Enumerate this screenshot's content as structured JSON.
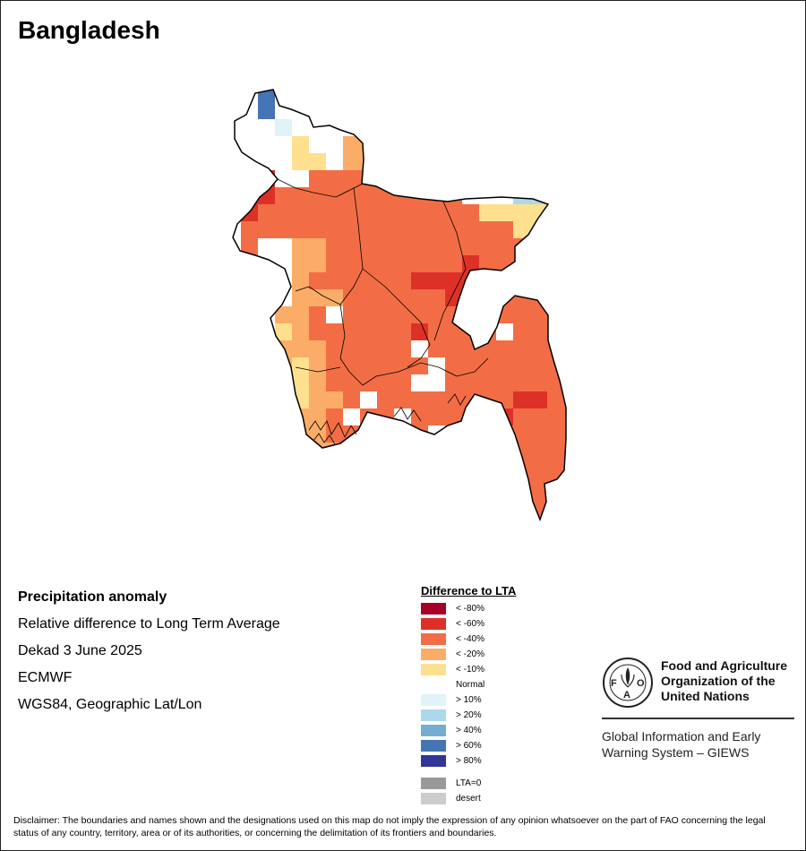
{
  "title": "Bangladesh",
  "info": {
    "heading": "Precipitation anomaly",
    "line1": "Relative difference to Long Term Average",
    "line2": "Dekad 3 June 2025",
    "line3": "ECMWF",
    "line4": "WGS84, Geographic Lat/Lon"
  },
  "legend": {
    "title": "Difference to LTA",
    "items": [
      {
        "label": "< -80%",
        "color": "#a50026"
      },
      {
        "label": "< -60%",
        "color": "#dd3127"
      },
      {
        "label": "< -40%",
        "color": "#f26d45"
      },
      {
        "label": "< -20%",
        "color": "#fbad68"
      },
      {
        "label": "< -10%",
        "color": "#fee08f"
      },
      {
        "label": "Normal",
        "color": "#ffffff"
      },
      {
        "label": "> 10%",
        "color": "#e0f3f8"
      },
      {
        "label": "> 20%",
        "color": "#abd9e9"
      },
      {
        "label": "> 40%",
        "color": "#74add1"
      },
      {
        "label": "> 60%",
        "color": "#4575b4"
      },
      {
        "label": "> 80%",
        "color": "#313695"
      }
    ],
    "extra": [
      {
        "label": "LTA=0",
        "color": "#999999"
      },
      {
        "label": "desert",
        "color": "#cccccc"
      }
    ]
  },
  "fao": {
    "name_line1": "Food and Agriculture",
    "name_line2": "Organization of the",
    "name_line3": "United Nations",
    "sub_line1": "Global Information and Early",
    "sub_line2": "Warning System – GIEWS",
    "logo_letters": "FAO",
    "logo_motto": "FIAT PANIS"
  },
  "disclaimer": "Disclaimer: The boundaries and names shown and the designations used on this map do not imply the expression of any opinion whatsoever on the part of FAO concerning the legal status of any country, territory, area or of its authorities, or concerning the delimitation of its frontiers and boundaries."
}
